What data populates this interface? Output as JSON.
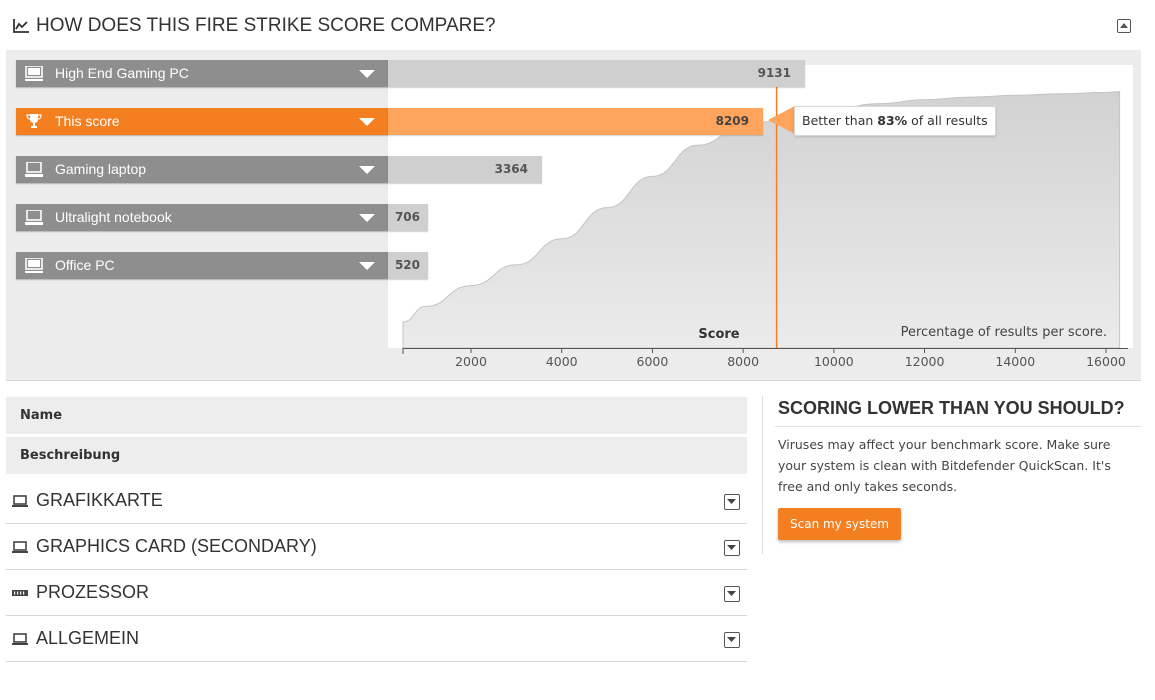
{
  "compare": {
    "title": "HOW DOES THIS FIRE STRIKE SCORE COMPARE?",
    "rows": [
      {
        "label": "High End Gaming PC",
        "value": 9131,
        "icon": "desktop-icon",
        "active": false
      },
      {
        "label": "This score",
        "value": 8209,
        "icon": "trophy-icon",
        "active": true
      },
      {
        "label": "Gaming laptop",
        "value": 3364,
        "icon": "laptop-icon",
        "active": false
      },
      {
        "label": "Ultralight notebook",
        "value": 706,
        "icon": "laptop-icon",
        "active": false
      },
      {
        "label": "Office PC",
        "value": 520,
        "icon": "desktop-icon",
        "active": false
      }
    ],
    "better_prefix": "Better than ",
    "better_pct": "83%",
    "better_suffix": " of all results",
    "colors": {
      "accent": "#f47f20",
      "accent_light": "#ffa45c",
      "bar": "#cfcfcf",
      "label_bg": "#8e8e8e"
    }
  },
  "chart_data": {
    "type": "area",
    "xlabel": "Score",
    "ylabel": "Percentage of results per score.",
    "xlim": [
      0,
      16500
    ],
    "x_ticks": [
      2000,
      4000,
      6000,
      8000,
      10000,
      12000,
      14000,
      16000
    ],
    "marker_score": 8209,
    "series": [
      {
        "x": [
          0,
          1000,
          2000,
          3000,
          4000,
          5000,
          6000,
          7000,
          8000,
          8500,
          9000,
          10000,
          11000,
          12000,
          13000,
          14000,
          15000,
          16000,
          16300
        ],
        "y": [
          10,
          16,
          24,
          32,
          42,
          54,
          66,
          78,
          85,
          87,
          89,
          92,
          94,
          95.5,
          96.5,
          97.2,
          97.8,
          98.3,
          98.6
        ]
      }
    ]
  },
  "details": {
    "name_label": "Name",
    "desc_label": "Beschreibung",
    "sections": [
      {
        "title": "GRAFIKKARTE",
        "icon": "monitor-icon"
      },
      {
        "title": "GRAPHICS CARD (SECONDARY)",
        "icon": "monitor-icon"
      },
      {
        "title": "PROZESSOR",
        "icon": "cpu-icon"
      },
      {
        "title": "ALLGEMEIN",
        "icon": "computer-icon"
      }
    ]
  },
  "promo": {
    "title": "SCORING LOWER THAN YOU SHOULD?",
    "text": "Viruses may affect your benchmark score. Make sure your system is clean with Bitdefender QuickScan. It's free and only takes seconds.",
    "button": "Scan my system"
  }
}
